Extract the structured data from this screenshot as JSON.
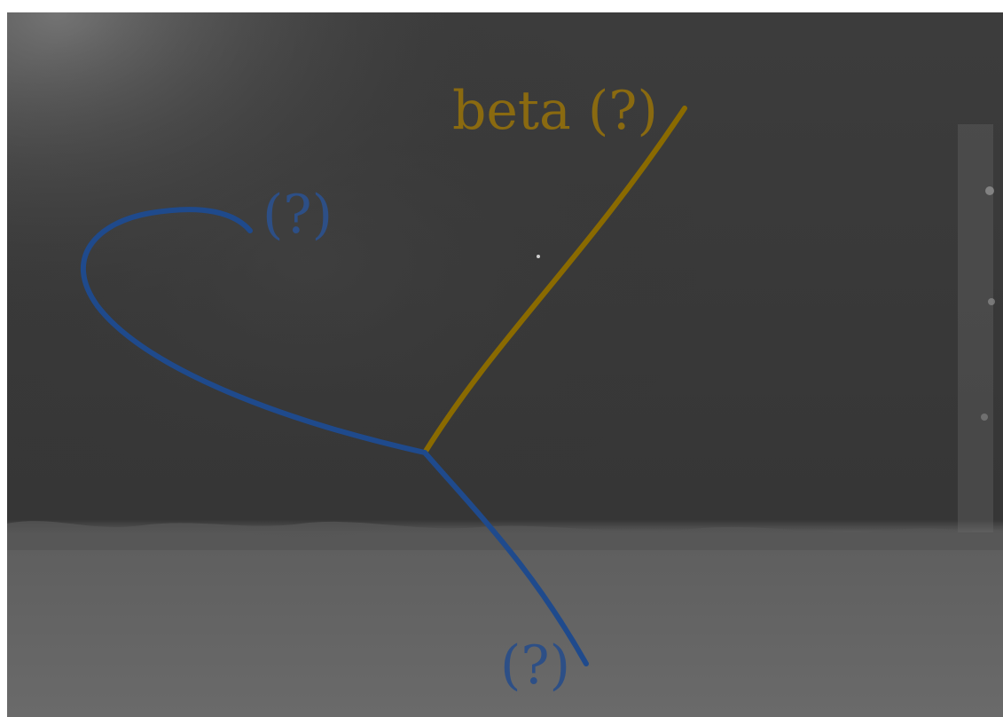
{
  "labels": {
    "beta": "beta (?)",
    "top_left": "(?)",
    "bottom": "(?)"
  },
  "colors": {
    "track_blue": "#1f4a8c",
    "track_gold": "#8a6a00",
    "label_blue": "#2d4f86",
    "label_gold": "#8a6a10"
  }
}
